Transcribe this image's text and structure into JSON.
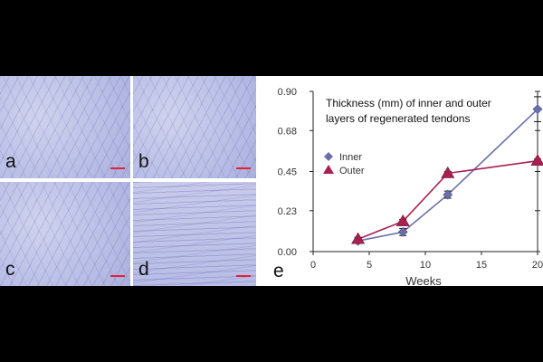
{
  "panels": [
    {
      "letter": "a"
    },
    {
      "letter": "b"
    },
    {
      "letter": "c"
    },
    {
      "letter": "d"
    }
  ],
  "chart_panel_letter": "e",
  "chart_data": {
    "type": "line",
    "title_lines": [
      "Thickness (mm) of inner and  outer",
      "layers of regenerated tendons"
    ],
    "xlabel": "Weeks",
    "ylabel": "",
    "xlim": [
      0,
      20
    ],
    "ylim": [
      0,
      0.9
    ],
    "xticks": [
      0,
      5,
      10,
      15,
      20
    ],
    "yticks": [
      "0.00",
      "0.23",
      "0.45",
      "0.68",
      "0.90"
    ],
    "x": [
      4,
      8,
      12,
      20
    ],
    "series": [
      {
        "name": "Inner",
        "marker": "diamond",
        "color": "#6a6fa8",
        "values": [
          0.06,
          0.11,
          0.32,
          0.8
        ],
        "errors": [
          0.01,
          0.02,
          0.02,
          0.07
        ]
      },
      {
        "name": "Outer",
        "marker": "triangle",
        "color": "#a8204f",
        "values": [
          0.07,
          0.17,
          0.44,
          0.51
        ],
        "errors": [
          0.01,
          0.01,
          0.01,
          0.01
        ]
      }
    ],
    "grid": false,
    "legend_position": "upper-left"
  }
}
